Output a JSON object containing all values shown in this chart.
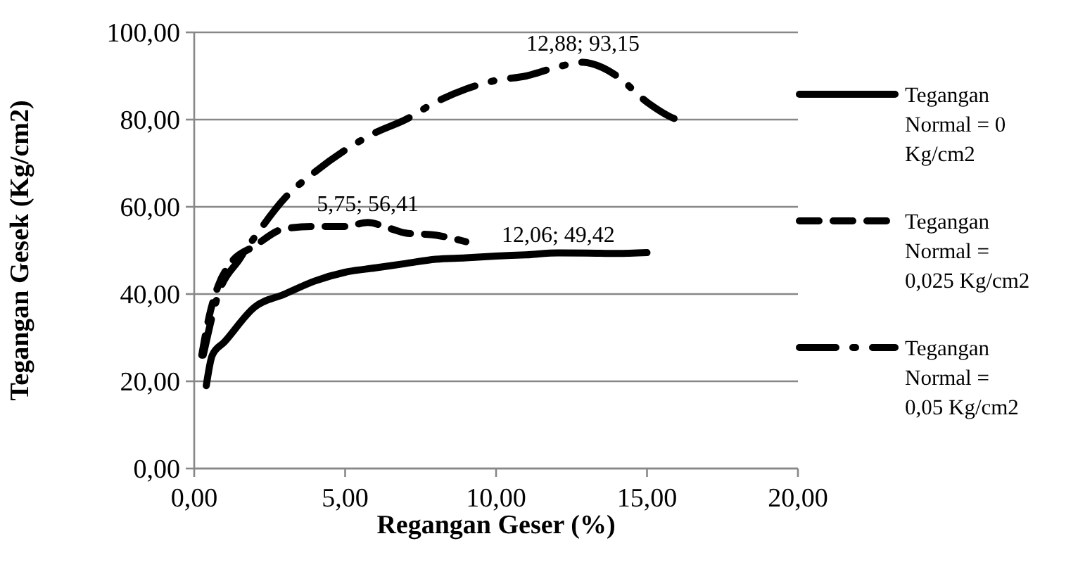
{
  "chart_data": {
    "type": "line",
    "xlabel": "Regangan Geser (%)",
    "ylabel": "Tegangan Gesek (Kg/cm2)",
    "xlim": [
      0,
      20
    ],
    "xticks": [
      {
        "value": 0,
        "label": "0,00"
      },
      {
        "value": 5,
        "label": "5,00"
      },
      {
        "value": 10,
        "label": "10,00"
      },
      {
        "value": 15,
        "label": "15,00"
      },
      {
        "value": 20,
        "label": "20,00"
      }
    ],
    "ylim": [
      0,
      100
    ],
    "yticks": [
      {
        "value": 0,
        "label": "0,00"
      },
      {
        "value": 20,
        "label": "20,00"
      },
      {
        "value": 40,
        "label": "40,00"
      },
      {
        "value": 60,
        "label": "60,00"
      },
      {
        "value": 80,
        "label": "80,00"
      },
      {
        "value": 100,
        "label": "100,00"
      }
    ],
    "grid": "y",
    "legend": "right",
    "series": [
      {
        "name": "Tegangan Normal = 0 Kg/cm2",
        "color": "#000000",
        "line_style": "solid",
        "x": [
          0.4,
          0.6,
          1,
          2,
          3,
          4,
          5,
          6,
          7,
          8,
          9,
          10,
          11,
          12.06,
          13,
          14,
          15
        ],
        "values": [
          19,
          26,
          29,
          37,
          40,
          43,
          45,
          46,
          47,
          48,
          48.3,
          48.7,
          49,
          49.42,
          49.4,
          49.3,
          49.5
        ]
      },
      {
        "name": "Tegangan Normal = 0,025 Kg/cm2",
        "color": "#000000",
        "line_style": "dashed",
        "x": [
          0.25,
          0.5,
          0.8,
          1.2,
          2,
          3,
          4,
          5,
          5.75,
          6.5,
          7,
          8,
          9
        ],
        "values": [
          26,
          35,
          42,
          47,
          51,
          55,
          55.5,
          55.5,
          56.41,
          55,
          54,
          53.5,
          52
        ]
      },
      {
        "name": "Tegangan Normal = 0,05 Kg/cm2",
        "color": "#000000",
        "line_style": "dashdot",
        "x": [
          0.3,
          0.8,
          1.5,
          2,
          3,
          4,
          5,
          6,
          7,
          8,
          9,
          10,
          11,
          12,
          12.88,
          13.5,
          14,
          15,
          16,
          16.3
        ],
        "values": [
          26,
          40,
          48,
          53,
          62,
          68,
          73,
          77,
          80,
          84,
          87,
          89,
          90,
          92,
          93.15,
          92,
          90,
          84,
          80,
          79.5
        ]
      }
    ],
    "annotations": [
      {
        "text": "12,06; 49,42",
        "x": 12.06,
        "y": 49.42
      },
      {
        "text": "5,75; 56,41",
        "x": 5.75,
        "y": 56.41
      },
      {
        "text": "12,88; 93,15",
        "x": 12.88,
        "y": 93.15
      }
    ]
  }
}
